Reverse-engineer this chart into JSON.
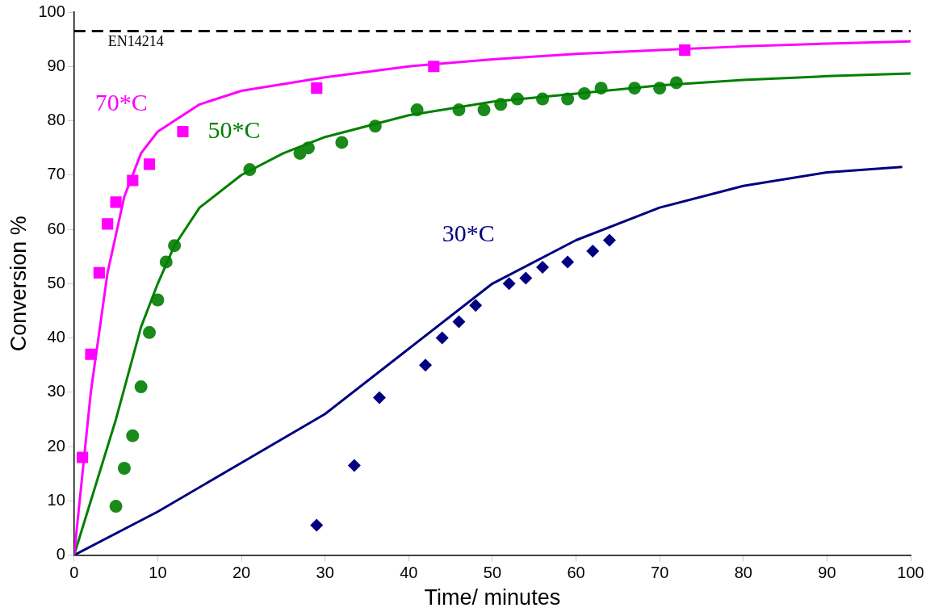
{
  "chart_data": {
    "type": "scatter",
    "xlabel": "Time/ minutes",
    "ylabel": "Conversion %",
    "xlim": [
      0,
      100
    ],
    "ylim": [
      0,
      100
    ],
    "xticks": [
      0,
      10,
      20,
      30,
      40,
      50,
      60,
      70,
      80,
      90,
      100
    ],
    "yticks": [
      0,
      10,
      20,
      30,
      40,
      50,
      60,
      70,
      80,
      90,
      100
    ],
    "grid": false,
    "legend": false,
    "series": [
      {
        "type": "line",
        "name": "70*C",
        "color": "#ff00ff",
        "marker": "none",
        "x": [
          0,
          2,
          4,
          6,
          8,
          10,
          15,
          20,
          30,
          40,
          50,
          60,
          70,
          80,
          90,
          100
        ],
        "values": [
          0,
          30,
          52,
          66,
          74,
          78,
          83,
          85.5,
          88,
          90,
          91.3,
          92.3,
          93,
          93.7,
          94.2,
          94.6
        ]
      },
      {
        "type": "line",
        "name": "50*C",
        "color": "#008000",
        "marker": "none",
        "x": [
          0,
          5,
          8,
          10,
          12,
          15,
          20,
          25,
          30,
          40,
          50,
          60,
          70,
          80,
          90,
          100
        ],
        "values": [
          0,
          25,
          42,
          50,
          57,
          64,
          70,
          74,
          77,
          81,
          83.5,
          85,
          86.5,
          87.5,
          88.2,
          88.7
        ]
      },
      {
        "type": "line",
        "name": "30*C",
        "color": "#000080",
        "marker": "none",
        "x": [
          0,
          10,
          20,
          30,
          40,
          50,
          60,
          70,
          80,
          90,
          99
        ],
        "values": [
          0,
          8,
          17,
          26,
          38,
          50,
          58,
          64,
          68,
          70.5,
          71.5
        ]
      },
      {
        "type": "scatter",
        "color": "#ff00ff",
        "marker": "square",
        "x": [
          1,
          2,
          3,
          4,
          5,
          7,
          9,
          13,
          29,
          43,
          73
        ],
        "values": [
          18,
          37,
          52,
          61,
          65,
          69,
          72,
          78,
          86,
          90,
          93
        ]
      },
      {
        "type": "scatter",
        "color": "#1a8a1a",
        "marker": "circle",
        "x": [
          5,
          6,
          7,
          8,
          9,
          10,
          11,
          12,
          21,
          27,
          28,
          32,
          36,
          41,
          46,
          49,
          51,
          53,
          56,
          59,
          61,
          63,
          67,
          70,
          72
        ],
        "values": [
          9,
          16,
          22,
          31,
          41,
          47,
          54,
          57,
          71,
          74,
          75,
          76,
          79,
          82,
          82,
          82,
          83,
          84,
          84,
          84,
          85,
          86,
          86,
          86,
          87
        ]
      },
      {
        "type": "scatter",
        "color": "#000080",
        "marker": "diamond",
        "x": [
          29,
          33.5,
          36.5,
          42,
          44,
          46,
          48,
          52,
          54,
          56,
          59,
          62,
          64
        ],
        "values": [
          5.5,
          16.5,
          29,
          35,
          40,
          43,
          46,
          50,
          51,
          53,
          54,
          56,
          58
        ]
      }
    ],
    "ref_lines": [
      {
        "axis": "y",
        "value": 96.5,
        "label": "EN14214",
        "color": "#000000",
        "line_style": "dashed"
      }
    ]
  }
}
